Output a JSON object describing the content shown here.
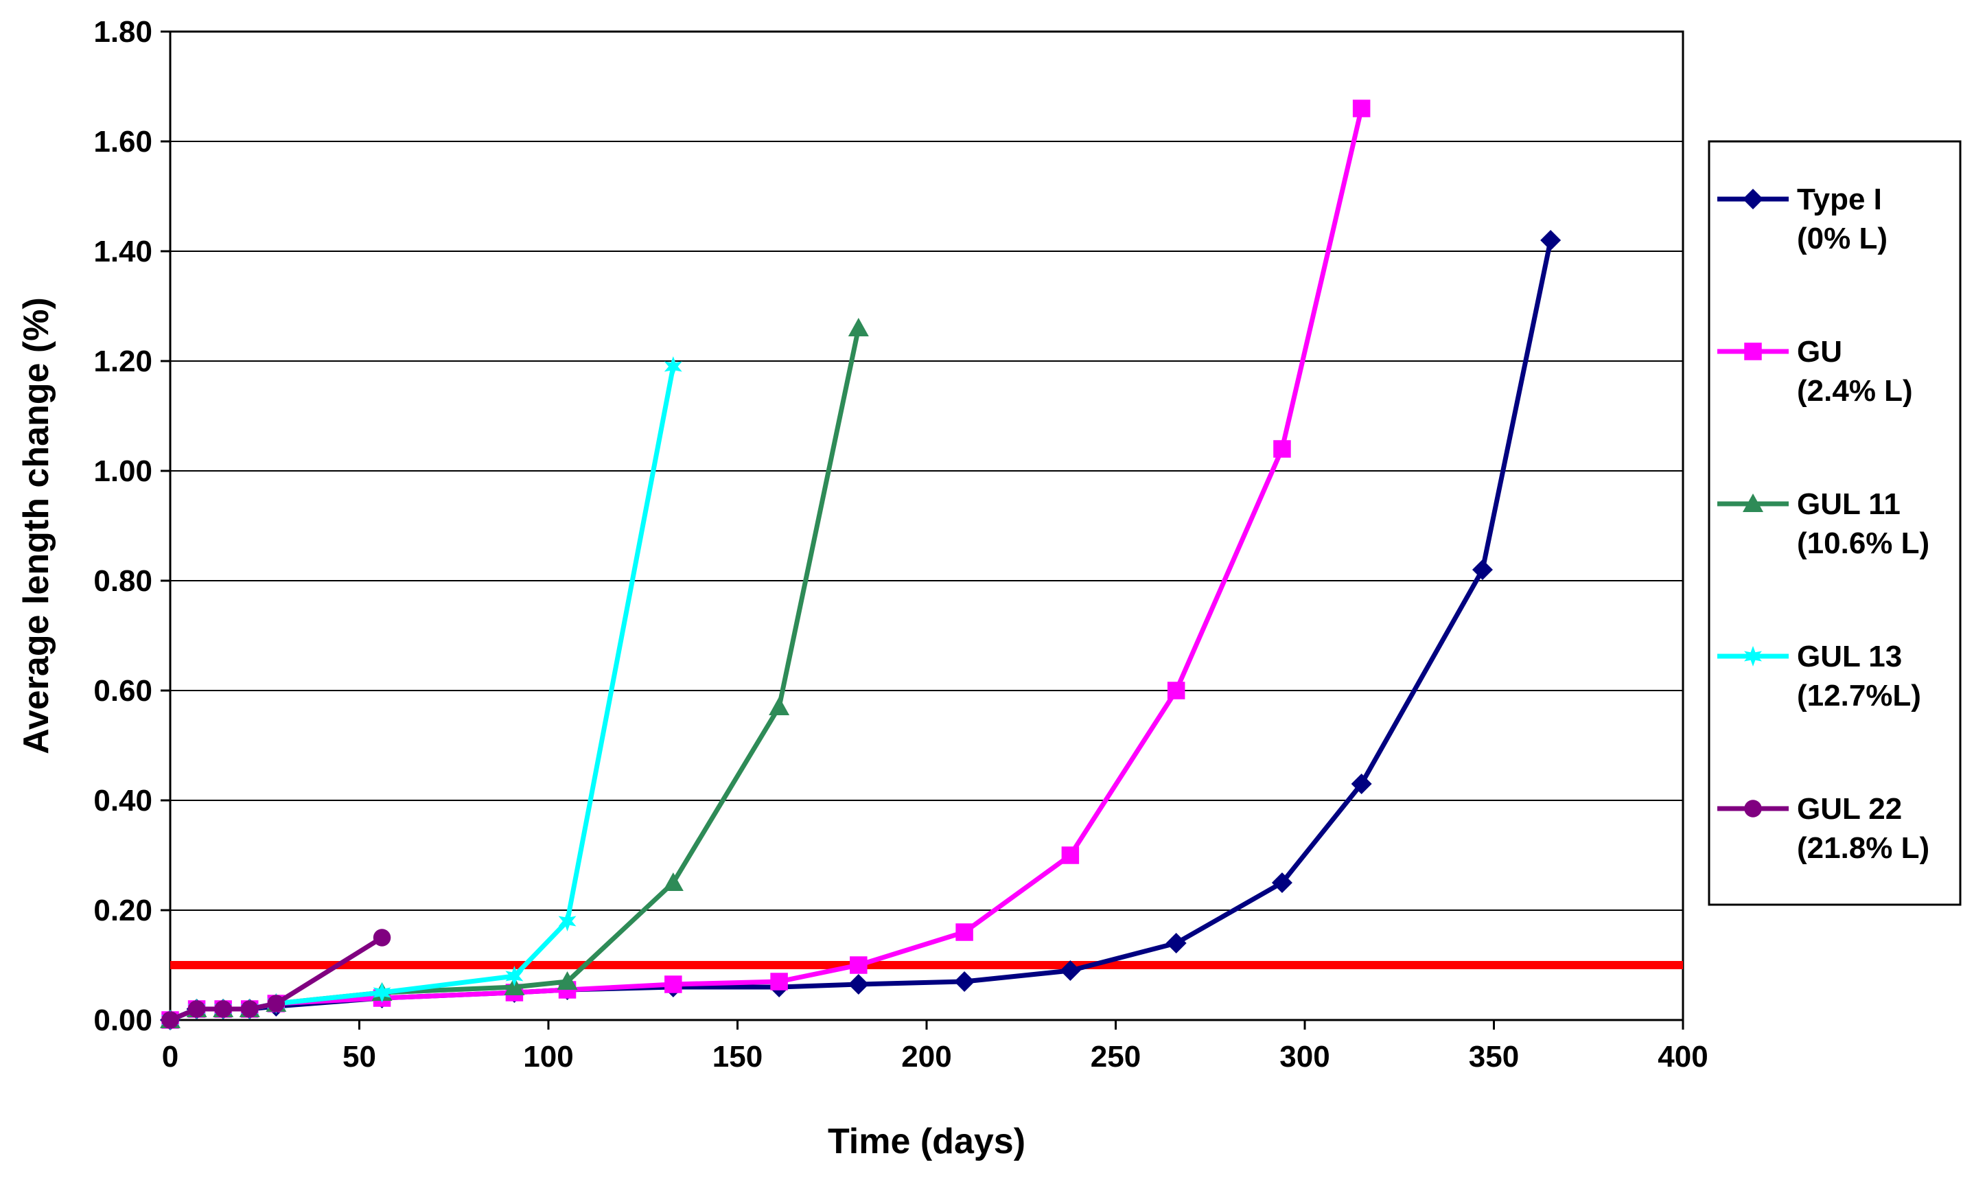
{
  "chart_data": {
    "type": "line",
    "title": "",
    "xlabel": "Time (days)",
    "ylabel": "Average length change (%)",
    "xlim": [
      0,
      400
    ],
    "ylim": [
      0,
      1.8
    ],
    "xticks": [
      "0",
      "50",
      "100",
      "150",
      "200",
      "250",
      "300",
      "350",
      "400"
    ],
    "xtick_values": [
      0,
      50,
      100,
      150,
      200,
      250,
      300,
      350,
      400
    ],
    "yticks": [
      "0.00",
      "0.20",
      "0.40",
      "0.60",
      "0.80",
      "1.00",
      "1.20",
      "1.40",
      "1.60",
      "1.80"
    ],
    "ytick_values": [
      0,
      0.2,
      0.4,
      0.6,
      0.8,
      1.0,
      1.2,
      1.4,
      1.6,
      1.8
    ],
    "grid": "horizontal",
    "legend_position": "right",
    "threshold": {
      "y": 0.1,
      "color": "#ff0000"
    },
    "series": [
      {
        "name": "Type I",
        "name2": "(0% L)",
        "color": "#000080",
        "marker": "diamond",
        "x": [
          0,
          7,
          14,
          21,
          28,
          56,
          91,
          105,
          133,
          161,
          182,
          210,
          238,
          266,
          294,
          315,
          347,
          365
        ],
        "y": [
          0.0,
          0.02,
          0.02,
          0.02,
          0.025,
          0.04,
          0.05,
          0.055,
          0.06,
          0.06,
          0.065,
          0.07,
          0.09,
          0.14,
          0.25,
          0.43,
          0.82,
          1.42
        ]
      },
      {
        "name": "GU",
        "name2": "(2.4% L)",
        "color": "#ff00ff",
        "marker": "square",
        "x": [
          0,
          7,
          14,
          21,
          28,
          56,
          91,
          105,
          133,
          161,
          182,
          210,
          238,
          266,
          294,
          315
        ],
        "y": [
          0.0,
          0.02,
          0.02,
          0.02,
          0.03,
          0.04,
          0.05,
          0.055,
          0.065,
          0.07,
          0.1,
          0.16,
          0.3,
          0.6,
          1.04,
          1.66
        ]
      },
      {
        "name": "GUL 11",
        "name2": "(10.6% L)",
        "color": "#2e8b57",
        "marker": "triangle",
        "x": [
          0,
          7,
          14,
          21,
          28,
          56,
          91,
          105,
          133,
          161,
          182
        ],
        "y": [
          0.0,
          0.02,
          0.02,
          0.02,
          0.03,
          0.05,
          0.06,
          0.07,
          0.25,
          0.57,
          1.26
        ]
      },
      {
        "name": "GUL 13",
        "name2": "(12.7%L)",
        "color": "#00ffff",
        "marker": "star",
        "x": [
          0,
          7,
          14,
          21,
          28,
          56,
          91,
          105,
          133
        ],
        "y": [
          0.0,
          0.02,
          0.02,
          0.02,
          0.03,
          0.05,
          0.08,
          0.18,
          1.19
        ]
      },
      {
        "name": "GUL 22",
        "name2": "(21.8% L)",
        "color": "#800080",
        "marker": "circle",
        "x": [
          0,
          7,
          14,
          21,
          28,
          56
        ],
        "y": [
          0.0,
          0.02,
          0.02,
          0.02,
          0.03,
          0.15
        ]
      }
    ]
  }
}
